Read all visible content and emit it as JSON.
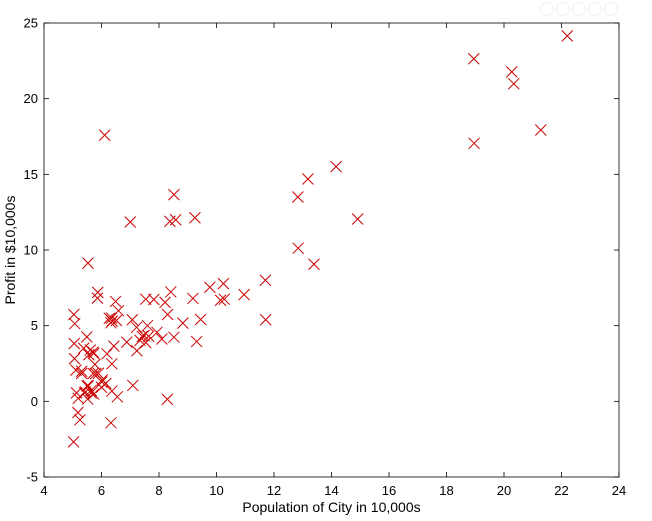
{
  "chart_data": {
    "type": "scatter",
    "title": "",
    "xlabel": "Population of City in 10,000s",
    "ylabel": "Profit in $10,000s",
    "xlim": [
      4,
      24
    ],
    "ylim": [
      -5,
      25
    ],
    "xticks": [
      4,
      6,
      8,
      10,
      12,
      14,
      16,
      18,
      20,
      22,
      24
    ],
    "yticks": [
      -5,
      0,
      5,
      10,
      15,
      20,
      25
    ],
    "grid": false,
    "marker": "x",
    "marker_color": "#cc0000",
    "series": [
      {
        "points": [
          [
            6.11,
            17.59
          ],
          [
            5.53,
            9.13
          ],
          [
            8.52,
            13.66
          ],
          [
            7.0,
            11.85
          ],
          [
            5.86,
            6.82
          ],
          [
            8.38,
            11.89
          ],
          [
            7.48,
            4.35
          ],
          [
            8.58,
            12.0
          ],
          [
            6.49,
            6.6
          ],
          [
            5.05,
            3.82
          ],
          [
            5.71,
            3.25
          ],
          [
            14.16,
            15.51
          ],
          [
            5.73,
            3.16
          ],
          [
            8.41,
            7.23
          ],
          [
            5.64,
            0.72
          ],
          [
            5.38,
            3.51
          ],
          [
            6.37,
            5.3
          ],
          [
            5.13,
            0.56
          ],
          [
            6.43,
            3.65
          ],
          [
            7.07,
            5.39
          ],
          [
            6.19,
            3.14
          ],
          [
            20.27,
            21.77
          ],
          [
            5.49,
            4.26
          ],
          [
            6.33,
            5.19
          ],
          [
            5.56,
            3.08
          ],
          [
            18.95,
            22.64
          ],
          [
            12.83,
            13.5
          ],
          [
            10.96,
            7.05
          ],
          [
            13.18,
            14.69
          ],
          [
            22.2,
            24.15
          ],
          [
            5.25,
            -1.22
          ],
          [
            6.59,
            5.99
          ],
          [
            9.25,
            12.13
          ],
          [
            5.89,
            1.85
          ],
          [
            8.21,
            6.54
          ],
          [
            7.93,
            4.56
          ],
          [
            8.1,
            4.12
          ],
          [
            5.61,
            3.39
          ],
          [
            12.84,
            10.12
          ],
          [
            6.35,
            5.5
          ],
          [
            5.41,
            0.56
          ],
          [
            6.88,
            3.91
          ],
          [
            11.71,
            5.39
          ],
          [
            5.77,
            2.44
          ],
          [
            7.82,
            6.73
          ],
          [
            7.09,
            1.05
          ],
          [
            5.07,
            5.13
          ],
          [
            5.8,
            1.84
          ],
          [
            11.7,
            8.0
          ],
          [
            5.54,
            1.02
          ],
          [
            7.54,
            6.75
          ],
          [
            5.31,
            1.84
          ],
          [
            7.42,
            4.29
          ],
          [
            7.6,
            5.0
          ],
          [
            6.03,
            1.42
          ],
          [
            6.33,
            -1.42
          ],
          [
            6.36,
            2.48
          ],
          [
            6.27,
            5.49
          ],
          [
            5.64,
            0.56
          ],
          [
            9.31,
            3.95
          ],
          [
            9.45,
            5.41
          ],
          [
            8.83,
            5.17
          ],
          [
            5.18,
            -0.74
          ],
          [
            21.28,
            17.93
          ],
          [
            14.91,
            12.05
          ],
          [
            18.96,
            17.05
          ],
          [
            7.22,
            4.89
          ],
          [
            8.3,
            5.74
          ],
          [
            10.24,
            7.78
          ],
          [
            5.5,
            1.02
          ],
          [
            20.34,
            20.99
          ],
          [
            10.14,
            6.68
          ],
          [
            7.34,
            4.03
          ],
          [
            6.01,
            1.28
          ],
          [
            7.23,
            3.34
          ],
          [
            5.03,
            -2.68
          ],
          [
            6.55,
            0.3
          ],
          [
            7.54,
            3.88
          ],
          [
            5.04,
            5.74
          ],
          [
            10.27,
            6.75
          ],
          [
            5.11,
            2.06
          ],
          [
            5.73,
            0.48
          ],
          [
            5.19,
            0.2
          ],
          [
            6.36,
            0.68
          ],
          [
            9.77,
            7.54
          ],
          [
            6.52,
            5.34
          ],
          [
            8.52,
            4.24
          ],
          [
            9.18,
            6.8
          ],
          [
            6.0,
            0.93
          ],
          [
            5.52,
            0.15
          ],
          [
            5.06,
            2.82
          ],
          [
            5.71,
            1.85
          ],
          [
            7.64,
            4.3
          ],
          [
            5.87,
            7.2
          ],
          [
            5.31,
            1.99
          ],
          [
            8.29,
            0.14
          ],
          [
            13.39,
            9.06
          ],
          [
            5.44,
            0.62
          ],
          [
            6.15,
            1.18
          ]
        ]
      }
    ]
  }
}
